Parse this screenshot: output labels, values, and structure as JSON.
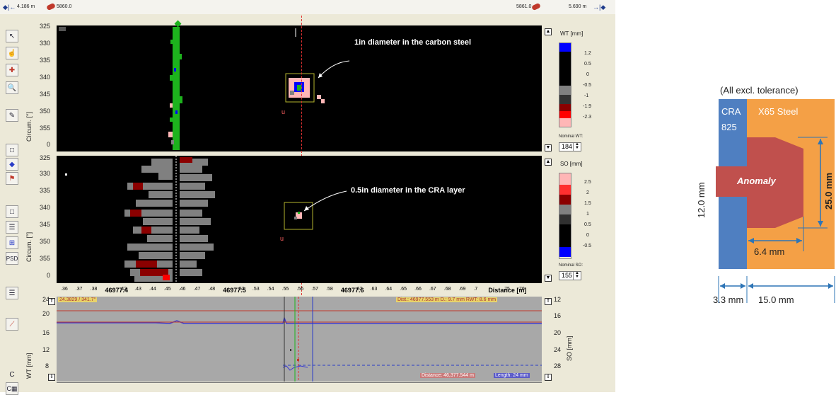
{
  "top_ruler": {
    "left_dist": "4.186 m",
    "left_marker": "5860.0",
    "right_marker": "5861.0",
    "right_dist": "5.690 m"
  },
  "wt_panel": {
    "y_axis_label": "Circum. [°]",
    "y_ticks": [
      "325",
      "330",
      "335",
      "340",
      "345",
      "350",
      "355",
      "0"
    ],
    "annotation": "1in diameter in the carbon steel",
    "flag": "u"
  },
  "wt_legend": {
    "title": "WT [mm]",
    "ticks": [
      "1.2",
      "0.5",
      "0",
      "-0.5",
      "-1",
      "-1.9",
      "-2.3"
    ],
    "colors": [
      "#0000ff",
      "#000000",
      "#000000",
      "#000000",
      "#808080",
      "#333333",
      "#8b0000",
      "#ff0000",
      "#ffb6b6"
    ],
    "nominal_label": "Nominal WT:",
    "nominal_value": "184"
  },
  "so_panel": {
    "y_axis_label": "Circum. [°]",
    "y_ticks": [
      "325",
      "330",
      "335",
      "340",
      "345",
      "350",
      "355",
      "0"
    ],
    "annotation": "0.5in diameter in the CRA layer",
    "flag": "u"
  },
  "so_legend": {
    "title": "SO [mm]",
    "ticks": [
      "2.5",
      "2",
      "1.5",
      "1",
      "0.5",
      "0",
      "-0.5"
    ],
    "colors": [
      "#ffb6b6",
      "#ff3030",
      "#8b0000",
      "#808080",
      "#303030",
      "#000000",
      "#000000",
      "#0000ff"
    ],
    "nominal_label": "Nominal SO:",
    "nominal_value": "155"
  },
  "x_axis": {
    "ticks": [
      ".36",
      ".37",
      ".38",
      "46977.4",
      ".42",
      ".43",
      ".44",
      ".45",
      ".46",
      ".47",
      ".48",
      "46977.5",
      ".52",
      ".53",
      ".54",
      ".55",
      ".56",
      ".57",
      ".58",
      "46977.6",
      ".62",
      ".63",
      ".64",
      ".65",
      ".66",
      ".67",
      ".68",
      ".69",
      ".7",
      "Distance [m]",
      ".75",
      ".76"
    ]
  },
  "profile": {
    "left_ticks": [
      "24",
      "20",
      "16",
      "12",
      "8"
    ],
    "right_ticks": [
      "12",
      "16",
      "20",
      "24",
      "28"
    ],
    "left_label": "WT [mm]",
    "right_label": "SO [mm]",
    "cursor_label": "24.3829 / 341.7°",
    "info_label": "Dist.: 46977.553 m  D.: 9.7 mm  RWT: 8.6 mm",
    "distance_label": "Distance: 46,377.544 m",
    "length_label": "Length: 24 mm"
  },
  "toolbar": {
    "buttons": [
      "pointer-icon",
      "hand-select-icon",
      "marker-select-icon",
      "zoom-icon",
      "annotate-icon",
      "rect-icon",
      "diamond-icon",
      "flag-icon",
      "frame-icon",
      "split-icon",
      "grid-icon",
      "psd-icon",
      "layout-icon",
      "line-tool-icon",
      "c-icon",
      "c-grid-icon"
    ],
    "psd": "PSD",
    "c": "C",
    "cg": "C▦"
  },
  "diagram": {
    "header": "(All excl. tolerance)",
    "cra_label_1": "CRA",
    "cra_label_2": "825",
    "steel_label": "X65 Steel",
    "anomaly_label": "Anomaly",
    "dim_height_left": "12.0 mm",
    "dim_height_right": "25.0 mm",
    "dim_depth": "6.4 mm",
    "dim_cra": "3.3 mm",
    "dim_steel": "15.0 mm",
    "colors": {
      "cra": "#4f7fc1",
      "steel": "#f4a046",
      "anomaly": "#c0504d",
      "dim": "#2e75b6"
    }
  }
}
